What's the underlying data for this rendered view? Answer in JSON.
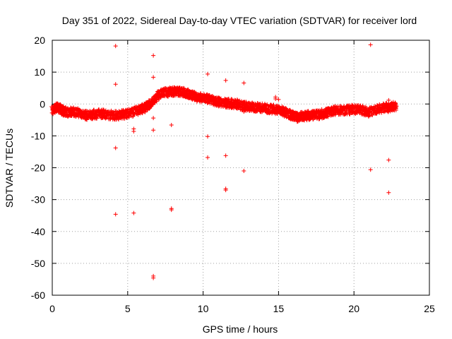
{
  "chart_data": {
    "type": "scatter",
    "title": "Day 351 of 2022, Sidereal Day-to-day VTEC variation (SDTVAR) for receiver lord",
    "xlabel": "GPS time / hours",
    "ylabel": "SDTVAR / TECUs",
    "xlim": [
      0,
      25
    ],
    "ylim": [
      -60,
      20
    ],
    "xticks": [
      0,
      5,
      10,
      15,
      20,
      25
    ],
    "yticks": [
      20,
      10,
      0,
      -10,
      -20,
      -30,
      -40,
      -50,
      -60
    ],
    "grid": true,
    "series": [
      {
        "name": "SDTVAR",
        "color": "#ff0000",
        "marker": "+",
        "trend": [
          [
            0.0,
            -2.0
          ],
          [
            0.3,
            -1.0
          ],
          [
            0.6,
            -1.8
          ],
          [
            0.9,
            -2.6
          ],
          [
            1.3,
            -2.4
          ],
          [
            1.8,
            -2.8
          ],
          [
            2.3,
            -3.6
          ],
          [
            2.8,
            -3.2
          ],
          [
            3.3,
            -3.0
          ],
          [
            3.8,
            -3.4
          ],
          [
            4.3,
            -3.6
          ],
          [
            4.8,
            -3.2
          ],
          [
            5.3,
            -2.6
          ],
          [
            5.8,
            -1.8
          ],
          [
            6.2,
            -1.0
          ],
          [
            6.6,
            0.4
          ],
          [
            7.0,
            2.6
          ],
          [
            7.4,
            3.6
          ],
          [
            7.8,
            3.8
          ],
          [
            8.2,
            4.0
          ],
          [
            8.6,
            3.8
          ],
          [
            9.0,
            3.2
          ],
          [
            9.4,
            2.4
          ],
          [
            9.8,
            2.0
          ],
          [
            10.2,
            1.6
          ],
          [
            10.6,
            1.2
          ],
          [
            11.0,
            0.6
          ],
          [
            11.4,
            0.4
          ],
          [
            11.8,
            0.2
          ],
          [
            12.2,
            0.0
          ],
          [
            12.6,
            -0.6
          ],
          [
            13.0,
            -0.8
          ],
          [
            13.5,
            -1.0
          ],
          [
            14.0,
            -1.2
          ],
          [
            14.5,
            -1.6
          ],
          [
            15.0,
            -1.8
          ],
          [
            15.4,
            -2.6
          ],
          [
            15.8,
            -3.4
          ],
          [
            16.2,
            -4.2
          ],
          [
            16.6,
            -3.8
          ],
          [
            17.0,
            -3.6
          ],
          [
            17.4,
            -3.6
          ],
          [
            17.8,
            -3.2
          ],
          [
            18.2,
            -2.8
          ],
          [
            18.6,
            -2.2
          ],
          [
            19.0,
            -2.0
          ],
          [
            19.5,
            -2.0
          ],
          [
            20.0,
            -1.6
          ],
          [
            20.5,
            -1.8
          ],
          [
            21.0,
            -2.6
          ],
          [
            21.5,
            -1.6
          ],
          [
            22.0,
            -1.2
          ],
          [
            22.4,
            -1.0
          ],
          [
            22.8,
            -0.6
          ]
        ],
        "outliers": [
          [
            4.2,
            18.2
          ],
          [
            4.2,
            6.2
          ],
          [
            4.2,
            -13.8
          ],
          [
            4.2,
            -34.6
          ],
          [
            5.4,
            -7.8
          ],
          [
            5.4,
            -8.6
          ],
          [
            5.4,
            -34.2
          ],
          [
            6.7,
            15.2
          ],
          [
            6.7,
            8.4
          ],
          [
            6.7,
            -4.4
          ],
          [
            6.7,
            -8.2
          ],
          [
            6.7,
            -54.0
          ],
          [
            6.7,
            -54.6
          ],
          [
            7.9,
            -6.6
          ],
          [
            7.9,
            -32.8
          ],
          [
            7.9,
            -33.2
          ],
          [
            10.3,
            9.4
          ],
          [
            10.3,
            -10.2
          ],
          [
            10.3,
            -16.8
          ],
          [
            11.5,
            7.4
          ],
          [
            11.5,
            -16.2
          ],
          [
            11.5,
            -26.6
          ],
          [
            11.5,
            -27.0
          ],
          [
            12.7,
            6.6
          ],
          [
            12.7,
            -2.4
          ],
          [
            12.7,
            -21.0
          ],
          [
            14.8,
            2.2
          ],
          [
            14.8,
            1.6
          ],
          [
            15.0,
            1.4
          ],
          [
            21.1,
            18.6
          ],
          [
            21.1,
            -20.6
          ],
          [
            22.3,
            1.2
          ],
          [
            22.3,
            -17.6
          ],
          [
            22.3,
            -27.8
          ]
        ]
      }
    ]
  }
}
